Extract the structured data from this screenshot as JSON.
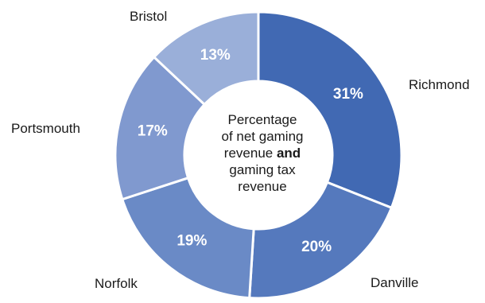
{
  "chart_data": {
    "type": "pie",
    "subtype": "donut",
    "center_text": {
      "line1": "Percentage",
      "line2": "of net gaming",
      "line3_pre": "revenue ",
      "line3_bold": "and",
      "line4": "gaming tax",
      "line5": "revenue"
    },
    "categories": [
      "Richmond",
      "Danville",
      "Norfolk",
      "Portsmouth",
      "Bristol"
    ],
    "values": [
      31,
      20,
      19,
      17,
      13
    ],
    "value_labels": [
      "31%",
      "20%",
      "19%",
      "17%",
      "13%"
    ],
    "colors": [
      "#4169b3",
      "#5579bd",
      "#6a8ac6",
      "#8099cf",
      "#9aafd9"
    ],
    "legend": "none",
    "start_angle_deg": 0,
    "direction": "clockwise"
  }
}
